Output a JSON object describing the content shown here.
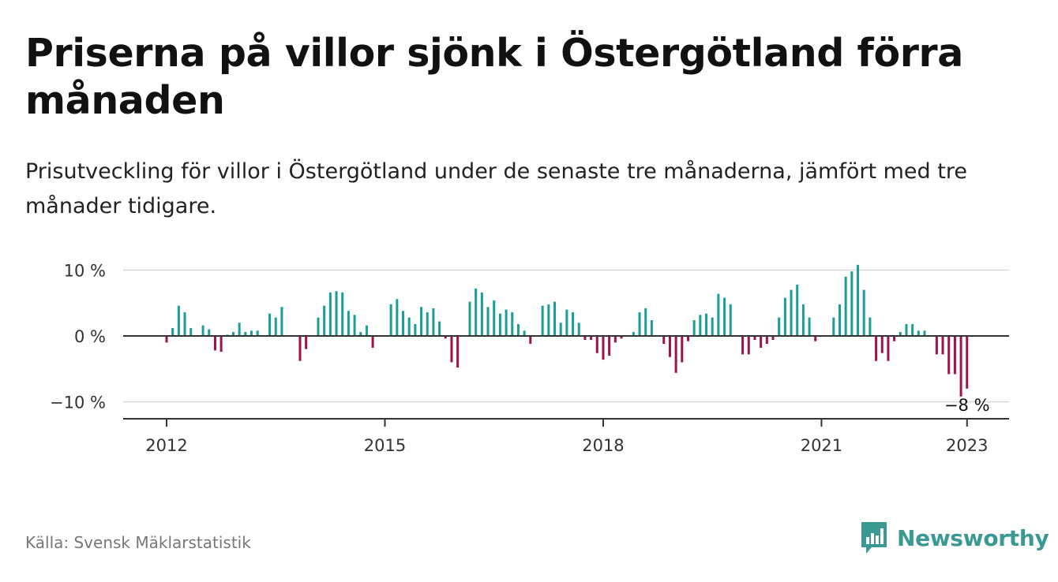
{
  "header": {
    "title": "Priserna på villor sjönk i Östergötland förra månaden",
    "subtitle": "Prisutveckling för villor i Östergötland under de senaste tre månaderna, jämfört med tre månader tidigare."
  },
  "footer": {
    "source": "Källa: Svensk Mäklarstatistik",
    "brand": "Newsworthy",
    "brand_icon": "newsworthy-logo-icon"
  },
  "colors": {
    "positive": "#1a9e96",
    "negative": "#a0124c",
    "zero_line": "#333333",
    "grid": "#d9d9d9",
    "brand": "#3a9a93"
  },
  "chart_data": {
    "type": "bar",
    "title": "",
    "xlabel": "",
    "ylabel": "",
    "ylim": [
      -12,
      12
    ],
    "yticks": [
      {
        "value": 10,
        "label": "10 %"
      },
      {
        "value": 0,
        "label": "0 %"
      },
      {
        "value": -10,
        "label": "−10 %"
      }
    ],
    "xticks": [
      {
        "date": "2012-01",
        "label": "2012"
      },
      {
        "date": "2015-01",
        "label": "2015"
      },
      {
        "date": "2018-01",
        "label": "2018"
      },
      {
        "date": "2021-01",
        "label": "2021"
      },
      {
        "date": "2023-01",
        "label": "2023"
      }
    ],
    "annotation": {
      "date": "2023-01",
      "label": "−8 %"
    },
    "x": [
      "2012-01",
      "2012-02",
      "2012-03",
      "2012-04",
      "2012-05",
      "2012-06",
      "2012-07",
      "2012-08",
      "2012-09",
      "2012-10",
      "2012-11",
      "2012-12",
      "2013-01",
      "2013-02",
      "2013-03",
      "2013-04",
      "2013-05",
      "2013-06",
      "2013-07",
      "2013-08",
      "2013-09",
      "2013-10",
      "2013-11",
      "2013-12",
      "2014-01",
      "2014-02",
      "2014-03",
      "2014-04",
      "2014-05",
      "2014-06",
      "2014-07",
      "2014-08",
      "2014-09",
      "2014-10",
      "2014-11",
      "2014-12",
      "2015-01",
      "2015-02",
      "2015-03",
      "2015-04",
      "2015-05",
      "2015-06",
      "2015-07",
      "2015-08",
      "2015-09",
      "2015-10",
      "2015-11",
      "2015-12",
      "2016-01",
      "2016-02",
      "2016-03",
      "2016-04",
      "2016-05",
      "2016-06",
      "2016-07",
      "2016-08",
      "2016-09",
      "2016-10",
      "2016-11",
      "2016-12",
      "2017-01",
      "2017-02",
      "2017-03",
      "2017-04",
      "2017-05",
      "2017-06",
      "2017-07",
      "2017-08",
      "2017-09",
      "2017-10",
      "2017-11",
      "2017-12",
      "2018-01",
      "2018-02",
      "2018-03",
      "2018-04",
      "2018-05",
      "2018-06",
      "2018-07",
      "2018-08",
      "2018-09",
      "2018-10",
      "2018-11",
      "2018-12",
      "2019-01",
      "2019-02",
      "2019-03",
      "2019-04",
      "2019-05",
      "2019-06",
      "2019-07",
      "2019-08",
      "2019-09",
      "2019-10",
      "2019-11",
      "2019-12",
      "2020-01",
      "2020-02",
      "2020-03",
      "2020-04",
      "2020-05",
      "2020-06",
      "2020-07",
      "2020-08",
      "2020-09",
      "2020-10",
      "2020-11",
      "2020-12",
      "2021-01",
      "2021-02",
      "2021-03",
      "2021-04",
      "2021-05",
      "2021-06",
      "2021-07",
      "2021-08",
      "2021-09",
      "2021-10",
      "2021-11",
      "2021-12",
      "2022-01",
      "2022-02",
      "2022-03",
      "2022-04",
      "2022-05",
      "2022-06",
      "2022-07",
      "2022-08",
      "2022-09",
      "2022-10",
      "2022-11",
      "2022-12",
      "2023-01"
    ],
    "values": [
      -1.0,
      1.2,
      4.6,
      3.6,
      1.2,
      0.0,
      1.6,
      1.0,
      -2.2,
      -2.4,
      0.2,
      0.6,
      2.0,
      0.6,
      0.8,
      0.8,
      0.0,
      3.4,
      2.8,
      4.4,
      0.0,
      0.0,
      -3.8,
      -2.0,
      0.0,
      2.8,
      4.6,
      6.6,
      6.8,
      6.6,
      3.8,
      3.2,
      0.6,
      1.6,
      -1.8,
      0.0,
      0.0,
      4.8,
      5.6,
      3.8,
      2.8,
      1.8,
      4.4,
      3.6,
      4.2,
      2.2,
      -0.4,
      -4.0,
      -4.8,
      0.0,
      5.2,
      7.2,
      6.6,
      4.4,
      5.4,
      3.4,
      4.0,
      3.6,
      1.8,
      0.8,
      -1.2,
      0.0,
      4.6,
      4.8,
      5.2,
      2.0,
      4.0,
      3.6,
      2.0,
      -0.6,
      -0.6,
      -2.6,
      -3.6,
      -3.0,
      -1.0,
      -0.4,
      0.0,
      0.6,
      3.6,
      4.2,
      2.4,
      0.0,
      -1.2,
      -3.2,
      -5.6,
      -4.0,
      -0.8,
      2.4,
      3.2,
      3.4,
      2.8,
      6.4,
      5.8,
      4.8,
      0.0,
      -2.8,
      -2.8,
      -0.6,
      -1.8,
      -1.2,
      -0.6,
      2.8,
      5.8,
      7.0,
      7.8,
      4.8,
      2.8,
      -0.8,
      0.0,
      0.0,
      2.8,
      4.8,
      9.0,
      9.8,
      10.8,
      7.0,
      2.8,
      -3.8,
      -2.6,
      -3.8,
      -0.8,
      0.6,
      1.8,
      1.8,
      0.8,
      0.8,
      0.0,
      -2.8,
      -2.8,
      -5.8,
      -5.8,
      -9.2,
      -8.0
    ]
  }
}
